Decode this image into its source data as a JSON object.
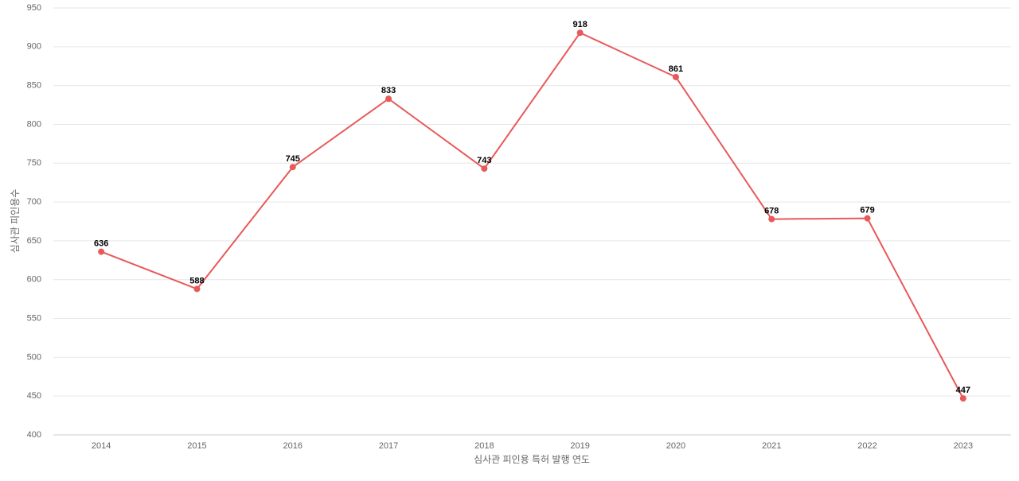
{
  "chart_data": {
    "type": "line",
    "x_label": "심사관 피인용 특허 발행 연도",
    "y_label": "심사관 피인용수",
    "categories": [
      "2014",
      "2015",
      "2016",
      "2017",
      "2018",
      "2019",
      "2020",
      "2021",
      "2022",
      "2023"
    ],
    "values": [
      636,
      588,
      745,
      833,
      743,
      918,
      861,
      678,
      679,
      447
    ],
    "color": "#e8595a",
    "ylim": [
      400,
      950
    ],
    "yticks": [
      400,
      450,
      500,
      550,
      600,
      650,
      700,
      750,
      800,
      850,
      900,
      950
    ],
    "grid": true
  }
}
